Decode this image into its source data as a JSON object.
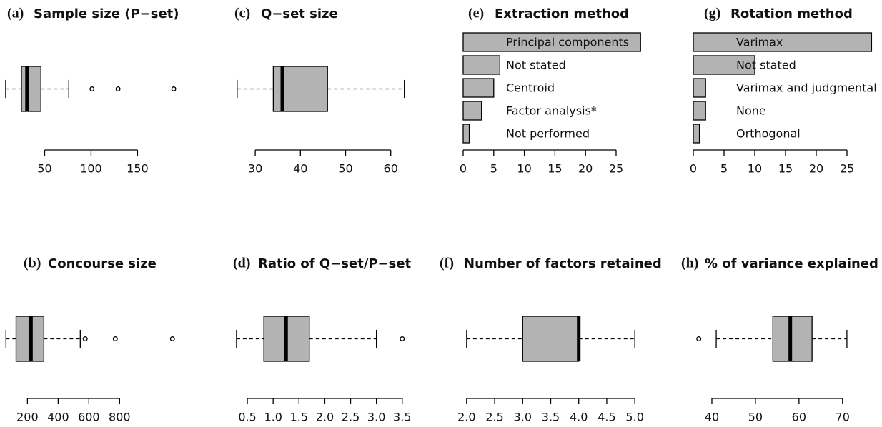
{
  "chart_data": [
    {
      "type": "boxplot",
      "label": "(a)",
      "title": "Sample size (P−set)",
      "color": "#b3b3b3",
      "min": 8,
      "q1": 25,
      "median": 31,
      "q3": 46,
      "max": 76,
      "outliers": [
        101,
        129,
        189
      ],
      "xlim": [
        5,
        192
      ],
      "xticks": [
        50,
        100,
        150
      ]
    },
    {
      "type": "boxplot",
      "label": "(b)",
      "title": "Concourse size",
      "color": "#b3b3b3",
      "min": 60,
      "q1": 126,
      "median": 223,
      "q3": 307,
      "max": 544,
      "outliers": [
        576,
        772,
        1144
      ],
      "xlim": [
        40,
        1180
      ],
      "xticks": [
        200,
        400,
        600,
        800
      ]
    },
    {
      "type": "boxplot",
      "label": "(c)",
      "title": "Q−set size",
      "color": "#b3b3b3",
      "min": 26,
      "q1": 34,
      "median": 36,
      "q3": 46,
      "max": 63,
      "outliers": [],
      "xlim": [
        25,
        64
      ],
      "xticks": [
        30,
        40,
        50,
        60
      ]
    },
    {
      "type": "boxplot",
      "label": "(d)",
      "title": "Ratio of Q−set/P−set",
      "color": "#b3b3b3",
      "min": 0.29,
      "q1": 0.82,
      "median": 1.25,
      "q3": 1.7,
      "max": 3.0,
      "outliers": [
        3.5
      ],
      "xlim": [
        0.25,
        3.6
      ],
      "xticks": [
        0.5,
        {
          "value": 1,
          "label": "1.0"
        },
        1.5,
        {
          "value": 2,
          "label": "2.0"
        },
        2.5,
        {
          "value": 3,
          "label": "3.0"
        },
        3.5
      ]
    },
    {
      "type": "bar",
      "label": "(e)",
      "title": "Extraction method",
      "color": "#b3b3b3",
      "categories": [
        "Principal components",
        "Not stated",
        "Centroid",
        "Factor analysis*",
        "Not performed"
      ],
      "values": [
        29,
        6,
        5,
        3,
        1
      ],
      "xlim": [
        0,
        29.5
      ],
      "xticks": [
        0,
        5,
        10,
        15,
        20,
        25
      ]
    },
    {
      "type": "boxplot",
      "label": "(f)",
      "title": "Number of factors retained",
      "color": "#b3b3b3",
      "min": 2,
      "q1": 3,
      "median": 4,
      "q3": 4,
      "max": 5,
      "outliers": [],
      "xlim": [
        1.9,
        5.1
      ],
      "xticks": [
        {
          "value": 2,
          "label": "2.0"
        },
        2.5,
        {
          "value": 3,
          "label": "3.0"
        },
        3.5,
        {
          "value": 4,
          "label": "4.0"
        },
        4.5,
        {
          "value": 5,
          "label": "5.0"
        }
      ]
    },
    {
      "type": "bar",
      "label": "(g)",
      "title": "Rotation method",
      "color": "#b3b3b3",
      "categories": [
        "Varimax",
        "Not stated",
        "Varimax and judgmental",
        "None",
        "Orthogonal"
      ],
      "values": [
        29,
        10,
        2,
        2,
        1
      ],
      "xlim": [
        0,
        29.5
      ],
      "xticks": [
        0,
        5,
        10,
        15,
        20,
        25
      ]
    },
    {
      "type": "boxplot",
      "label": "(h)",
      "title": "% of variance explained",
      "color": "#b3b3b3",
      "min": 41,
      "q1": 54,
      "median": 58,
      "q3": 63,
      "max": 71,
      "outliers": [
        37
      ],
      "xlim": [
        35,
        72
      ],
      "xticks": [
        40,
        50,
        60,
        70
      ]
    }
  ]
}
